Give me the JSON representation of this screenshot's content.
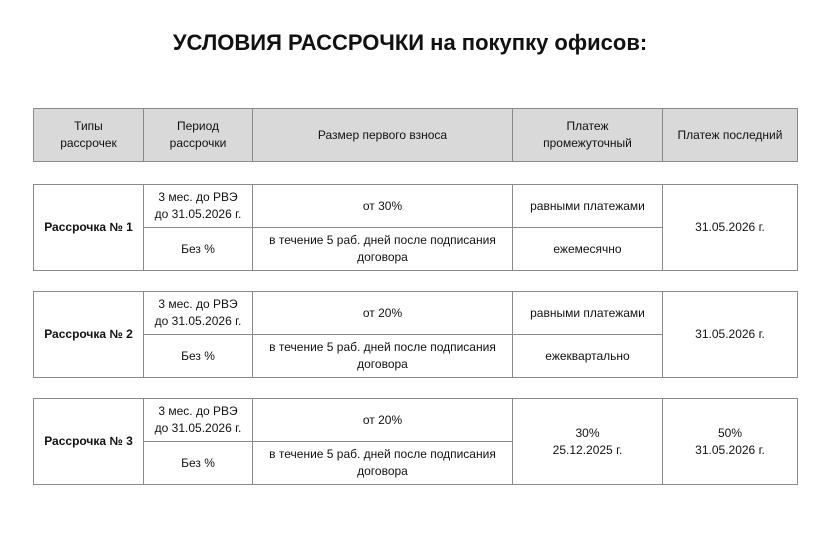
{
  "title": "УСЛОВИЯ РАССРОЧКИ на покупку офисов:",
  "header": [
    "Типы\nрассрочек",
    "Период\nрассрочки",
    "Размер первого взноса",
    "Платеж\nпромежуточный",
    "Платеж последний"
  ],
  "plans": [
    {
      "name": "Рассрочка № 1",
      "period": "3 мес. до РВЭ\nдо 31.05.2026 г.",
      "interest": "Без %",
      "down_payment": "от 30%",
      "down_payment_term": "в течение 5 раб. дней после подписания\nдоговора",
      "intermediate_top": "равными платежами",
      "intermediate_bottom": "ежемесячно",
      "last": "31.05.2026 г."
    },
    {
      "name": "Рассрочка № 2",
      "period": "3 мес. до РВЭ\nдо 31.05.2026 г.",
      "interest": "Без %",
      "down_payment": "от 20%",
      "down_payment_term": "в течение 5 раб. дней после подписания\nдоговора",
      "intermediate_top": "равными платежами",
      "intermediate_bottom": "ежеквартально",
      "last": "31.05.2026 г."
    },
    {
      "name": "Рассрочка № 3",
      "period": "3 мес. до РВЭ\nдо 31.05.2026 г.",
      "interest": "Без %",
      "down_payment": "от 20%",
      "down_payment_term": "в течение 5 раб. дней после подписания\nдоговора",
      "intermediate": "30%\n25.12.2025 г.",
      "last": "50%\n31.05.2026 г."
    }
  ]
}
